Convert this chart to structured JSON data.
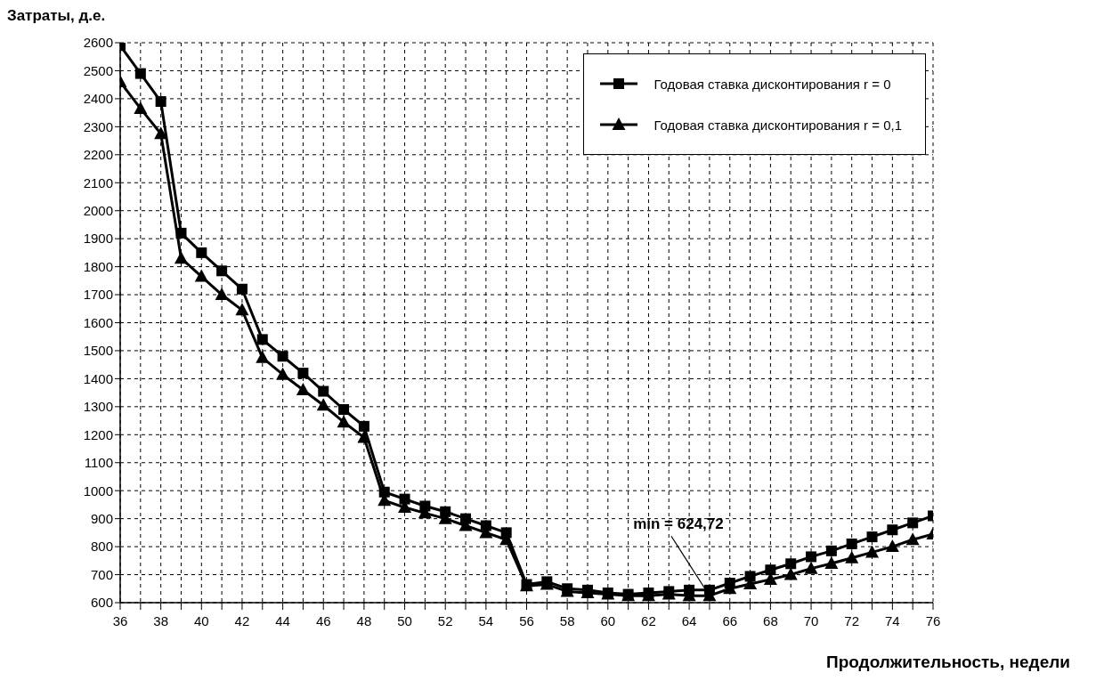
{
  "chart_data": {
    "type": "line",
    "ylabel": "Затраты, д.е.",
    "xlabel": "Продолжительность, недели",
    "x": [
      36,
      37,
      38,
      39,
      40,
      41,
      42,
      43,
      44,
      45,
      46,
      47,
      48,
      49,
      50,
      51,
      52,
      53,
      54,
      55,
      56,
      57,
      58,
      59,
      60,
      61,
      62,
      63,
      64,
      65,
      66,
      67,
      68,
      69,
      70,
      71,
      72,
      73,
      74,
      75,
      76
    ],
    "series": [
      {
        "name": "Годовая ставка дисконтирования r = 0",
        "color": "#000000",
        "marker": "square",
        "values": [
          2590,
          2490,
          2390,
          1920,
          1850,
          1785,
          1720,
          1540,
          1480,
          1420,
          1355,
          1290,
          1230,
          995,
          970,
          945,
          925,
          900,
          875,
          850,
          665,
          675,
          650,
          645,
          635,
          630,
          635,
          640,
          645,
          645,
          670,
          694,
          717,
          739,
          764,
          785,
          810,
          835,
          860,
          885,
          910
        ]
      },
      {
        "name": "Годовая ставка дисконтирования r = 0,1",
        "color": "#000000",
        "marker": "triangle",
        "values": [
          2460,
          2365,
          2275,
          1830,
          1765,
          1700,
          1645,
          1475,
          1415,
          1360,
          1305,
          1245,
          1190,
          965,
          940,
          920,
          900,
          875,
          850,
          825,
          660,
          665,
          640,
          635,
          630,
          625,
          625,
          630,
          625,
          625,
          650,
          667,
          683,
          700,
          722,
          740,
          760,
          780,
          800,
          825,
          845
        ]
      }
    ],
    "xlim": [
      36,
      76
    ],
    "xticks": [
      36,
      {
        "value": 37,
        "label": null
      },
      38,
      {
        "value": 39,
        "label": null
      },
      40,
      {
        "value": 41,
        "label": null
      },
      42,
      {
        "value": 43,
        "label": null
      },
      44,
      {
        "value": 45,
        "label": null
      },
      46,
      {
        "value": 47,
        "label": null
      },
      48,
      {
        "value": 49,
        "label": null
      },
      50,
      {
        "value": 51,
        "label": null
      },
      52,
      {
        "value": 53,
        "label": null
      },
      54,
      {
        "value": 55,
        "label": null
      },
      56,
      {
        "value": 57,
        "label": null
      },
      58,
      {
        "value": 59,
        "label": null
      },
      60,
      {
        "value": 61,
        "label": null
      },
      62,
      {
        "value": 63,
        "label": null
      },
      64,
      {
        "value": 65,
        "label": null
      },
      66,
      {
        "value": 67,
        "label": null
      },
      68,
      {
        "value": 69,
        "label": null
      },
      70,
      {
        "value": 71,
        "label": null
      },
      72,
      {
        "value": 73,
        "label": null
      },
      74,
      {
        "value": 75,
        "label": null
      },
      76
    ],
    "ylim": [
      600,
      2600
    ],
    "yticks": [
      600,
      700,
      800,
      900,
      1000,
      1100,
      1200,
      1300,
      1400,
      1500,
      1600,
      1700,
      1800,
      1900,
      2000,
      2100,
      2200,
      2300,
      2400,
      2500,
      2600
    ],
    "grid": true,
    "legend": "top right",
    "line_style": "solid",
    "annotations": [
      {
        "text": "min = 624,72",
        "x": 65,
        "y": 624.72
      }
    ]
  }
}
